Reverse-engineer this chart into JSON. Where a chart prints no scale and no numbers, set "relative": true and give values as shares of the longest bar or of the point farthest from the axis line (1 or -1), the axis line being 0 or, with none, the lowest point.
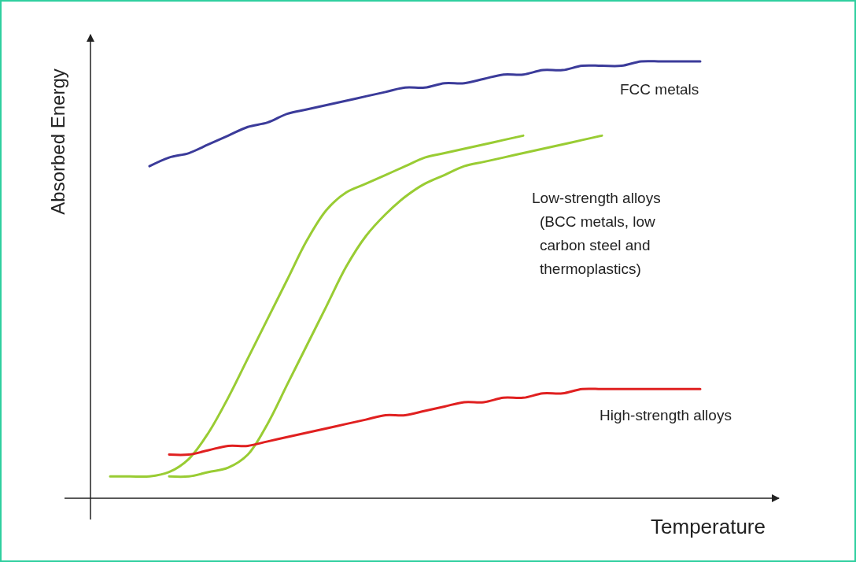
{
  "chart_data": {
    "type": "line",
    "relative": true,
    "xlabel": "Temperature",
    "ylabel": "Absorbed Energy",
    "categories": [
      null,
      null,
      null,
      null,
      null,
      null,
      null,
      null,
      null,
      null,
      null,
      null,
      null,
      null,
      null,
      null,
      null,
      null,
      null,
      null,
      null,
      null,
      null,
      null,
      null,
      null,
      null,
      null,
      null,
      null,
      null
    ],
    "series": [
      {
        "name": "FCC metals",
        "color": "#3b3b9a",
        "values": [
          null,
          null,
          0.76,
          0.78,
          0.79,
          0.81,
          0.83,
          0.85,
          0.86,
          0.88,
          0.89,
          0.9,
          0.91,
          0.92,
          0.93,
          0.94,
          0.94,
          0.95,
          0.95,
          0.96,
          0.97,
          0.97,
          0.98,
          0.98,
          0.99,
          0.99,
          0.99,
          1.0,
          1.0,
          1.0,
          1.0
        ]
      },
      {
        "color": "#99cc33",
        "values": [
          0.05,
          0.05,
          0.05,
          0.06,
          0.09,
          0.15,
          0.23,
          0.32,
          0.41,
          0.5,
          0.59,
          0.66,
          0.7,
          0.72,
          0.74,
          0.76,
          0.78,
          0.79,
          0.8,
          0.81,
          0.82,
          0.83,
          null,
          null,
          null,
          null,
          null,
          null,
          null,
          null,
          null
        ]
      },
      {
        "color": "#99cc33",
        "values": [
          null,
          null,
          null,
          0.05,
          0.05,
          0.06,
          0.07,
          0.1,
          0.17,
          0.26,
          0.35,
          0.44,
          0.53,
          0.6,
          0.65,
          0.69,
          0.72,
          0.74,
          0.76,
          0.77,
          0.78,
          0.79,
          0.8,
          0.81,
          0.82,
          0.83,
          null,
          null,
          null,
          null,
          null
        ]
      },
      {
        "name": "High-strength alloys",
        "color": "#e02020",
        "values": [
          null,
          null,
          null,
          0.1,
          0.1,
          0.11,
          0.12,
          0.12,
          0.13,
          0.14,
          0.15,
          0.16,
          0.17,
          0.18,
          0.19,
          0.19,
          0.2,
          0.21,
          0.22,
          0.22,
          0.23,
          0.23,
          0.24,
          0.24,
          0.25,
          0.25,
          0.25,
          0.25,
          0.25,
          0.25,
          0.25
        ]
      }
    ],
    "annotations": [
      "Low-strength alloys\n(BCC metals, low\ncarbon steel and\nthermoplastics)"
    ]
  }
}
